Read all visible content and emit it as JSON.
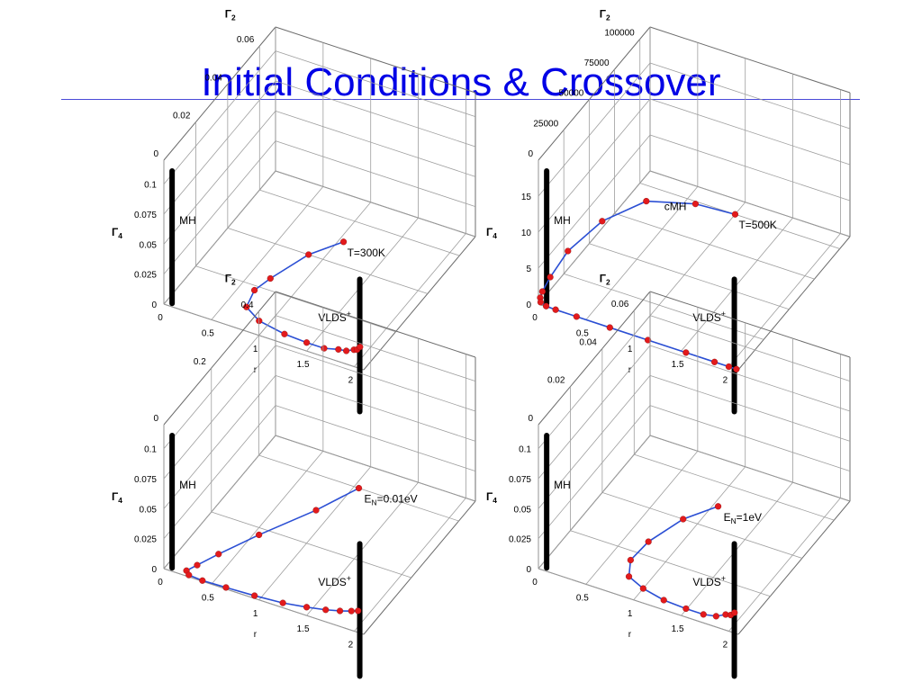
{
  "slide": {
    "title": "Initial Conditions & Crossover",
    "colors": {
      "title": "#0000e6",
      "curve": "#2b4fd4",
      "points": "#e31a1c",
      "pole": "#000000"
    }
  },
  "chart_data": [
    {
      "type": "scatter",
      "subtype": "3d-line",
      "axes": {
        "r": {
          "label": "r",
          "ticks": [
            "0",
            "0.5",
            "1",
            "1.5",
            "2"
          ],
          "range": [
            0,
            2.1
          ]
        },
        "gamma2": {
          "label": "Γ",
          "sub": "2",
          "ticks": [
            "0",
            "0.02",
            "0.04",
            "0.06"
          ],
          "range": [
            0,
            0.07
          ]
        },
        "gamma4": {
          "label": "Γ",
          "sub": "4",
          "ticks": [
            "0",
            "0.025",
            "0.05",
            "0.075",
            "0.1"
          ],
          "range": [
            0,
            0.12
          ]
        }
      },
      "lines": [
        "MH",
        "VLDS"
      ],
      "line_labels": {
        "MH": "MH",
        "VLDS": "VLDS",
        "VLDS_sup": "+"
      },
      "annotation": {
        "text": "T=300K"
      },
      "series": [
        {
          "points": [
            [
              1.05,
              0.05,
              0.0
            ],
            [
              0.85,
              0.04,
              0.0
            ],
            [
              0.7,
              0.025,
              0.0
            ],
            [
              0.65,
              0.018,
              0.0
            ],
            [
              0.7,
              0.01,
              0.0
            ],
            [
              0.9,
              0.006,
              0.0
            ],
            [
              1.2,
              0.004,
              0.0
            ],
            [
              1.45,
              0.003,
              0.001
            ],
            [
              1.65,
              0.002,
              0.003
            ],
            [
              1.8,
              0.002,
              0.006
            ],
            [
              1.9,
              0.001,
              0.009
            ],
            [
              1.98,
              0.001,
              0.012
            ],
            [
              2.03,
              0.0,
              0.015
            ],
            [
              2.06,
              0.0,
              0.018
            ]
          ]
        }
      ]
    },
    {
      "type": "scatter",
      "subtype": "3d-line",
      "axes": {
        "r": {
          "label": "r",
          "ticks": [
            "0",
            "0.5",
            "1",
            "1.5",
            "2"
          ],
          "range": [
            0,
            2.1
          ]
        },
        "gamma2": {
          "label": "Γ",
          "sub": "2",
          "ticks": [
            "0",
            "25000",
            "50000",
            "75000",
            "100000"
          ],
          "range": [
            0,
            110000
          ]
        },
        "gamma4": {
          "label": "Γ",
          "sub": "4",
          "ticks": [
            "0",
            "5",
            "10",
            "15"
          ],
          "range": [
            0,
            20
          ]
        }
      },
      "lines": [
        "MH",
        "VLDS"
      ],
      "line_labels": {
        "MH": "MH",
        "VLDS": "VLDS",
        "VLDS_sup": "+",
        "cMH": "cMH"
      },
      "annotation": {
        "text": "T=500K"
      },
      "series": [
        {
          "points": [
            [
              1.0,
              100000,
              0.0
            ],
            [
              0.85,
              75000,
              5.0
            ],
            [
              0.6,
              50000,
              8.5
            ],
            [
              0.35,
              30000,
              8.0
            ],
            [
              0.15,
              15000,
              5.5
            ],
            [
              0.06,
              6000,
              3.0
            ],
            [
              0.02,
              2000,
              1.5
            ],
            [
              0.01,
              800,
              0.8
            ],
            [
              0.02,
              300,
              0.3
            ],
            [
              0.08,
              100,
              0.05
            ],
            [
              0.18,
              50,
              0.0
            ],
            [
              0.4,
              20,
              0.0
            ],
            [
              0.75,
              10,
              0.0
            ],
            [
              1.15,
              5,
              0.0
            ],
            [
              1.55,
              2,
              0.0
            ],
            [
              1.85,
              1,
              0.0
            ],
            [
              2.0,
              0,
              0.0
            ],
            [
              2.08,
              0,
              0.0
            ]
          ]
        }
      ]
    },
    {
      "type": "scatter",
      "subtype": "3d-line",
      "axes": {
        "r": {
          "label": "r",
          "ticks": [
            "0",
            "0.5",
            "1",
            "1.5",
            "2"
          ],
          "range": [
            0,
            2.1
          ]
        },
        "gamma2": {
          "label": "Γ",
          "sub": "2",
          "ticks": [
            "0",
            "0.2",
            "0.4"
          ],
          "range": [
            0,
            0.47
          ]
        },
        "gamma4": {
          "label": "Γ",
          "sub": "4",
          "ticks": [
            "0",
            "0.025",
            "0.05",
            "0.075",
            "0.1"
          ],
          "range": [
            0,
            0.12
          ]
        }
      },
      "lines": [
        "MH",
        "VLDS"
      ],
      "line_labels": {
        "MH": "MH",
        "VLDS": "VLDS",
        "VLDS_sup": "+"
      },
      "annotation": {
        "text": "E",
        "sub": "N",
        "rest": "=0.01eV"
      },
      "series": [
        {
          "points": [
            [
              1.05,
              0.4,
              0.0
            ],
            [
              0.85,
              0.3,
              0.0
            ],
            [
              0.55,
              0.18,
              0.0
            ],
            [
              0.35,
              0.09,
              0.0
            ],
            [
              0.25,
              0.04,
              0.0
            ],
            [
              0.2,
              0.015,
              0.0
            ],
            [
              0.25,
              0.005,
              0.0
            ],
            [
              0.4,
              0.002,
              0.0
            ],
            [
              0.65,
              0.001,
              0.001
            ],
            [
              0.95,
              0.001,
              0.002
            ],
            [
              1.25,
              0.0,
              0.004
            ],
            [
              1.5,
              0.0,
              0.007
            ],
            [
              1.7,
              0.0,
              0.01
            ],
            [
              1.85,
              0.0,
              0.013
            ],
            [
              1.97,
              0.0,
              0.016
            ],
            [
              2.04,
              0.0,
              0.018
            ]
          ]
        }
      ]
    },
    {
      "type": "scatter",
      "subtype": "3d-line",
      "axes": {
        "r": {
          "label": "r",
          "ticks": [
            "0",
            "0.5",
            "1",
            "1.5",
            "2"
          ],
          "range": [
            0,
            2.1
          ]
        },
        "gamma2": {
          "label": "Γ",
          "sub": "2",
          "ticks": [
            "0",
            "0.02",
            "0.04",
            "0.06"
          ],
          "range": [
            0,
            0.07
          ]
        },
        "gamma4": {
          "label": "Γ",
          "sub": "4",
          "ticks": [
            "0",
            "0.025",
            "0.05",
            "0.075",
            "0.1"
          ],
          "range": [
            0,
            0.12
          ]
        }
      },
      "lines": [
        "MH",
        "VLDS"
      ],
      "line_labels": {
        "MH": "MH",
        "VLDS": "VLDS",
        "VLDS_sup": "+"
      },
      "annotation": {
        "text": "E",
        "sub": "N",
        "rest": "=1eV"
      },
      "series": [
        {
          "points": [
            [
              1.05,
              0.05,
              0.0
            ],
            [
              0.85,
              0.04,
              0.0
            ],
            [
              0.72,
              0.026,
              0.0
            ],
            [
              0.7,
              0.016,
              0.0
            ],
            [
              0.8,
              0.009,
              0.0
            ],
            [
              1.0,
              0.006,
              0.0
            ],
            [
              1.25,
              0.004,
              0.0
            ],
            [
              1.5,
              0.003,
              0.001
            ],
            [
              1.7,
              0.002,
              0.003
            ],
            [
              1.85,
              0.001,
              0.007
            ],
            [
              1.95,
              0.001,
              0.011
            ],
            [
              2.02,
              0.0,
              0.014
            ],
            [
              2.06,
              0.0,
              0.017
            ]
          ]
        }
      ]
    }
  ]
}
